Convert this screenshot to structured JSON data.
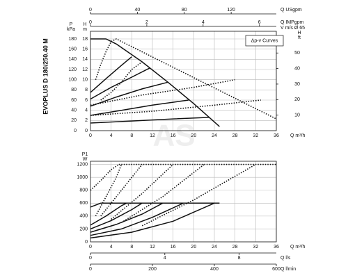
{
  "side_title": "EVOPLUS D 180/250.40 M",
  "watermark": "AS",
  "chart_data": [
    {
      "type": "line",
      "legend_label": "Δp-v Curves",
      "grid": true,
      "x_label": "Q m³/h",
      "xlim": [
        0,
        36
      ],
      "xticks": [
        0,
        4,
        8,
        12,
        16,
        20,
        24,
        28,
        32,
        36
      ],
      "y_label": "H",
      "y_unit": "m",
      "ylim": [
        0,
        19.5
      ],
      "yticks": [
        0,
        2,
        4,
        6,
        8,
        10,
        12,
        14,
        16,
        18
      ],
      "y_left2": {
        "label": "P",
        "unit": "kPa",
        "lim": [
          0,
          195
        ],
        "ticks": [
          0,
          20,
          40,
          60,
          80,
          100,
          120,
          140,
          160,
          180
        ]
      },
      "y_right": {
        "label": "H",
        "unit": "ft",
        "lim": [
          0,
          63.98
        ],
        "ticks": [
          10,
          20,
          30,
          40,
          50
        ]
      },
      "x_top_axes": [
        {
          "labels": [
            "Q USgpm"
          ],
          "lim": [
            0,
            158.5
          ],
          "ticks": [
            0,
            40,
            80,
            120
          ]
        },
        {
          "labels": [
            "Q IMPgpm",
            "V m/s Ø 65"
          ],
          "lim": [
            0,
            6.6
          ],
          "ticks": [
            0,
            2,
            4,
            6
          ]
        }
      ],
      "series": [
        {
          "color": "#111111",
          "dash": false,
          "x": [
            0,
            3,
            5,
            10,
            15,
            20,
            25
          ],
          "y": [
            18,
            18,
            17,
            13.5,
            9.5,
            5.3,
            0.8
          ]
        },
        {
          "color": "#111111",
          "dash": false,
          "x": [
            0,
            8,
            16,
            23
          ],
          "y": [
            1.5,
            1.9,
            2.3,
            2.6
          ]
        },
        {
          "color": "#111111",
          "dash": false,
          "x": [
            0,
            6,
            12,
            19
          ],
          "y": [
            3,
            4,
            5,
            6
          ]
        },
        {
          "color": "#111111",
          "dash": false,
          "x": [
            0,
            5,
            10,
            15
          ],
          "y": [
            4.8,
            6.6,
            8.2,
            9.5
          ]
        },
        {
          "color": "#111111",
          "dash": false,
          "x": [
            0,
            4,
            8,
            11.5
          ],
          "y": [
            6.2,
            8.5,
            10.5,
            12.3
          ]
        },
        {
          "color": "#111111",
          "dash": false,
          "x": [
            0,
            3,
            6,
            8
          ],
          "y": [
            7.5,
            10.2,
            12.8,
            14.5
          ]
        },
        {
          "color": "#111111",
          "dash": true,
          "x": [
            1,
            2,
            3,
            4,
            5,
            36
          ],
          "y": [
            10,
            13,
            15.5,
            17.5,
            18,
            2.3
          ]
        },
        {
          "color": "#111111",
          "dash": true,
          "x": [
            0,
            10,
            20,
            28
          ],
          "y": [
            5,
            7,
            8.5,
            10
          ]
        },
        {
          "color": "#111111",
          "dash": true,
          "x": [
            0,
            12,
            24,
            33
          ],
          "y": [
            3,
            3.8,
            5,
            6
          ]
        },
        {
          "color": "#111111",
          "dash": true,
          "x": [
            2,
            4,
            6,
            8,
            10
          ],
          "y": [
            6,
            7.5,
            9.5,
            12,
            13.5
          ]
        }
      ]
    },
    {
      "type": "line",
      "grid": true,
      "x_label": "Q m³/h",
      "xlim": [
        0,
        36
      ],
      "xticks": [
        0,
        4,
        8,
        12,
        16,
        20,
        24,
        28,
        32,
        36
      ],
      "y_label": "P1",
      "y_unit": "W",
      "ylim": [
        0,
        1250
      ],
      "yticks": [
        0,
        200,
        400,
        600,
        800,
        1000,
        1200
      ],
      "x_bottom_axes": [
        {
          "labels": [
            "Q l/s"
          ],
          "lim": [
            0,
            10
          ],
          "ticks": [
            0,
            4,
            8
          ]
        },
        {
          "labels": [
            "Q l/min"
          ],
          "lim": [
            0,
            600
          ],
          "ticks": [
            0,
            200,
            400,
            600
          ]
        }
      ],
      "series": [
        {
          "color": "#111111",
          "dash": false,
          "x": [
            0,
            2,
            25
          ],
          "y": [
            540,
            600,
            600
          ]
        },
        {
          "color": "#111111",
          "dash": false,
          "x": [
            0,
            8,
            16,
            24
          ],
          "y": [
            60,
            150,
            320,
            600
          ]
        },
        {
          "color": "#111111",
          "dash": false,
          "x": [
            0,
            6,
            12,
            18
          ],
          "y": [
            100,
            200,
            380,
            600
          ]
        },
        {
          "color": "#111111",
          "dash": false,
          "x": [
            0,
            5,
            10,
            14
          ],
          "y": [
            150,
            270,
            430,
            600
          ]
        },
        {
          "color": "#111111",
          "dash": false,
          "x": [
            0,
            4,
            8,
            10
          ],
          "y": [
            200,
            330,
            500,
            600
          ]
        },
        {
          "color": "#111111",
          "dash": false,
          "x": [
            0,
            3,
            6,
            7
          ],
          "y": [
            260,
            400,
            560,
            600
          ]
        },
        {
          "color": "#111111",
          "dash": true,
          "x": [
            5.5,
            36
          ],
          "y": [
            1200,
            1200
          ]
        },
        {
          "color": "#111111",
          "dash": true,
          "x": [
            0,
            2,
            4,
            5.5
          ],
          "y": [
            800,
            950,
            1120,
            1200
          ]
        },
        {
          "color": "#111111",
          "dash": true,
          "x": [
            1,
            3,
            5,
            6
          ],
          "y": [
            400,
            700,
            1000,
            1200
          ]
        },
        {
          "color": "#111111",
          "dash": true,
          "x": [
            2,
            6,
            10
          ],
          "y": [
            400,
            800,
            1200
          ]
        },
        {
          "color": "#111111",
          "dash": true,
          "x": [
            4,
            10,
            16
          ],
          "y": [
            350,
            750,
            1200
          ]
        },
        {
          "color": "#111111",
          "dash": true,
          "x": [
            6,
            14,
            22
          ],
          "y": [
            300,
            700,
            1200
          ]
        },
        {
          "color": "#111111",
          "dash": true,
          "x": [
            10,
            20,
            32
          ],
          "y": [
            250,
            650,
            1200
          ]
        }
      ]
    }
  ]
}
